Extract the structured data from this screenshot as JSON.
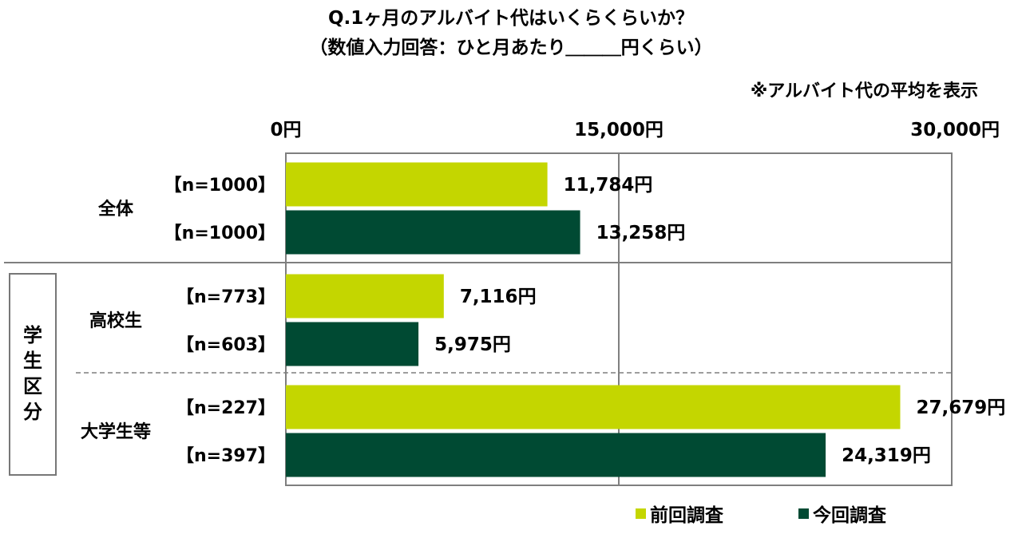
{
  "chart_data": {
    "type": "bar",
    "orientation": "horizontal",
    "title": "Q.1ヶ月のアルバイト代はいくらくらいか？",
    "subtitle": "（数値入力回答：ひと月あたり＿＿＿円くらい）",
    "note": "※アルバイト代の平均を表示",
    "xlim": [
      0,
      30000
    ],
    "x_ticks": [
      {
        "value": 0,
        "label": "0円"
      },
      {
        "value": 15000,
        "label": "15,000円"
      },
      {
        "value": 30000,
        "label": "30,000円"
      }
    ],
    "grid": true,
    "legend_position": "bottom-right",
    "group_label": "学生区分",
    "categories": [
      "全体",
      "高校生",
      "大学生等"
    ],
    "series": [
      {
        "name": "前回調査",
        "color": "#c4d600",
        "values": [
          11784,
          7116,
          27679
        ],
        "value_labels": [
          "11,784円",
          "7,116円",
          "27,679円"
        ],
        "n_labels": [
          "【n=1000】",
          "【n=773】",
          "【n=227】"
        ]
      },
      {
        "name": "今回調査",
        "color": "#004a33",
        "values": [
          13258,
          5975,
          24319
        ],
        "value_labels": [
          "13,258円",
          "5,975円",
          "24,319円"
        ],
        "n_labels": [
          "【n=1000】",
          "【n=603】",
          "【n=397】"
        ]
      }
    ]
  }
}
